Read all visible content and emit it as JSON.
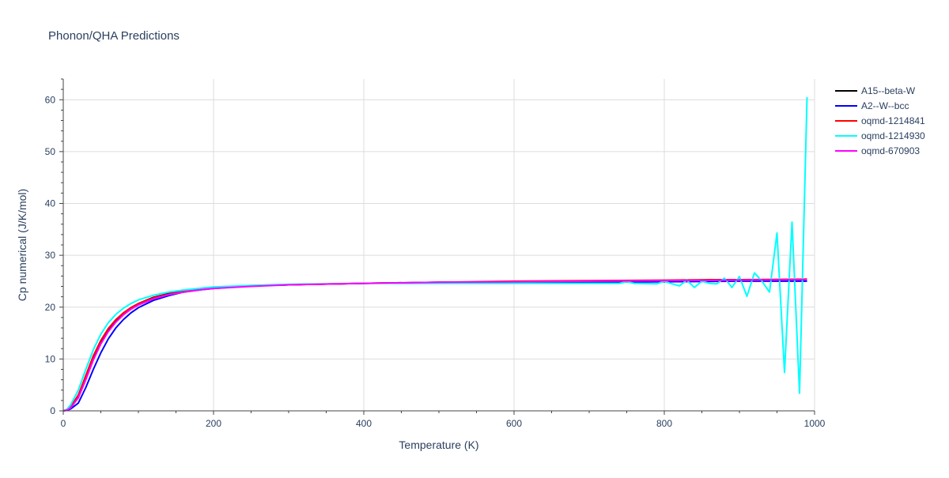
{
  "chart_data": {
    "type": "line",
    "title": "Phonon/QHA Predictions",
    "xlabel": "Temperature (K)",
    "ylabel": "Cp numerical (J/K/mol)",
    "xlim": [
      0,
      1000
    ],
    "ylim": [
      0,
      64
    ],
    "x_ticks": [
      0,
      200,
      400,
      600,
      800,
      1000
    ],
    "y_ticks": [
      0,
      10,
      20,
      30,
      40,
      50,
      60
    ],
    "grid": true,
    "legend_position": "top-right",
    "series": [
      {
        "name": "A15--beta-W",
        "color": "#000000",
        "points": [
          [
            0,
            0
          ],
          [
            5,
            0.2
          ],
          [
            10,
            0.8
          ],
          [
            20,
            3.0
          ],
          [
            30,
            6.5
          ],
          [
            40,
            10.2
          ],
          [
            50,
            13.2
          ],
          [
            60,
            15.6
          ],
          [
            70,
            17.4
          ],
          [
            80,
            18.8
          ],
          [
            90,
            19.9
          ],
          [
            100,
            20.7
          ],
          [
            120,
            21.9
          ],
          [
            140,
            22.6
          ],
          [
            160,
            23.1
          ],
          [
            180,
            23.4
          ],
          [
            200,
            23.7
          ],
          [
            250,
            24.1
          ],
          [
            300,
            24.3
          ],
          [
            400,
            24.6
          ],
          [
            500,
            24.8
          ],
          [
            600,
            24.9
          ],
          [
            700,
            25.0
          ],
          [
            800,
            25.1
          ],
          [
            900,
            25.2
          ],
          [
            990,
            25.3
          ]
        ]
      },
      {
        "name": "A2--W--bcc",
        "color": "#0000ff",
        "points": [
          [
            0,
            0
          ],
          [
            5,
            0.1
          ],
          [
            10,
            0.4
          ],
          [
            20,
            1.5
          ],
          [
            30,
            4.5
          ],
          [
            40,
            8.0
          ],
          [
            50,
            11.2
          ],
          [
            60,
            13.9
          ],
          [
            70,
            16.0
          ],
          [
            80,
            17.6
          ],
          [
            90,
            18.9
          ],
          [
            100,
            19.9
          ],
          [
            120,
            21.3
          ],
          [
            140,
            22.2
          ],
          [
            160,
            22.9
          ],
          [
            180,
            23.3
          ],
          [
            200,
            23.6
          ],
          [
            250,
            24.1
          ],
          [
            300,
            24.3
          ],
          [
            400,
            24.6
          ],
          [
            500,
            24.7
          ],
          [
            600,
            24.8
          ],
          [
            700,
            24.8
          ],
          [
            800,
            24.9
          ],
          [
            900,
            25.0
          ],
          [
            990,
            25.0
          ]
        ]
      },
      {
        "name": "oqmd-1214841",
        "color": "#ff0000",
        "points": [
          [
            0,
            0
          ],
          [
            5,
            0.2
          ],
          [
            10,
            0.8
          ],
          [
            20,
            3.0
          ],
          [
            30,
            6.8
          ],
          [
            40,
            10.6
          ],
          [
            50,
            13.6
          ],
          [
            60,
            15.9
          ],
          [
            70,
            17.6
          ],
          [
            80,
            18.9
          ],
          [
            90,
            19.9
          ],
          [
            100,
            20.7
          ],
          [
            120,
            21.8
          ],
          [
            140,
            22.5
          ],
          [
            160,
            23.0
          ],
          [
            180,
            23.4
          ],
          [
            200,
            23.7
          ],
          [
            250,
            24.1
          ],
          [
            300,
            24.3
          ],
          [
            400,
            24.6
          ],
          [
            500,
            24.8
          ],
          [
            600,
            25.0
          ],
          [
            700,
            25.1
          ],
          [
            800,
            25.2
          ],
          [
            860,
            25.3
          ],
          [
            900,
            25.3
          ],
          [
            990,
            25.4
          ]
        ]
      },
      {
        "name": "oqmd-1214930",
        "color": "#00ffff",
        "points": [
          [
            0,
            0
          ],
          [
            5,
            0.3
          ],
          [
            10,
            1.2
          ],
          [
            20,
            4.0
          ],
          [
            30,
            8.0
          ],
          [
            40,
            11.8
          ],
          [
            50,
            14.8
          ],
          [
            60,
            17.0
          ],
          [
            70,
            18.6
          ],
          [
            80,
            19.8
          ],
          [
            90,
            20.7
          ],
          [
            100,
            21.4
          ],
          [
            120,
            22.3
          ],
          [
            140,
            22.9
          ],
          [
            160,
            23.3
          ],
          [
            180,
            23.6
          ],
          [
            200,
            23.9
          ],
          [
            250,
            24.2
          ],
          [
            300,
            24.4
          ],
          [
            400,
            24.6
          ],
          [
            500,
            24.6
          ],
          [
            600,
            24.6
          ],
          [
            700,
            24.6
          ],
          [
            740,
            24.6
          ],
          [
            750,
            24.9
          ],
          [
            760,
            24.6
          ],
          [
            790,
            24.5
          ],
          [
            800,
            25.0
          ],
          [
            810,
            24.5
          ],
          [
            820,
            24.1
          ],
          [
            830,
            25.2
          ],
          [
            840,
            23.8
          ],
          [
            850,
            25.0
          ],
          [
            860,
            24.6
          ],
          [
            870,
            24.5
          ],
          [
            880,
            25.6
          ],
          [
            890,
            23.8
          ],
          [
            900,
            25.9
          ],
          [
            910,
            22.1
          ],
          [
            920,
            26.6
          ],
          [
            930,
            25.0
          ],
          [
            940,
            22.9
          ],
          [
            950,
            34.3
          ],
          [
            960,
            7.4
          ],
          [
            970,
            36.4
          ],
          [
            980,
            3.4
          ],
          [
            990,
            60.5
          ]
        ]
      },
      {
        "name": "oqmd-670903",
        "color": "#ff00ff",
        "points": [
          [
            0,
            0
          ],
          [
            5,
            0.15
          ],
          [
            10,
            0.6
          ],
          [
            20,
            2.5
          ],
          [
            30,
            6.0
          ],
          [
            40,
            9.8
          ],
          [
            50,
            12.9
          ],
          [
            60,
            15.3
          ],
          [
            70,
            17.1
          ],
          [
            80,
            18.5
          ],
          [
            90,
            19.6
          ],
          [
            100,
            20.4
          ],
          [
            120,
            21.6
          ],
          [
            140,
            22.4
          ],
          [
            160,
            22.9
          ],
          [
            180,
            23.3
          ],
          [
            200,
            23.6
          ],
          [
            250,
            24.0
          ],
          [
            300,
            24.3
          ],
          [
            400,
            24.6
          ],
          [
            500,
            24.8
          ],
          [
            600,
            24.9
          ],
          [
            700,
            25.0
          ],
          [
            800,
            25.1
          ],
          [
            900,
            25.2
          ],
          [
            990,
            25.3
          ]
        ]
      }
    ]
  }
}
